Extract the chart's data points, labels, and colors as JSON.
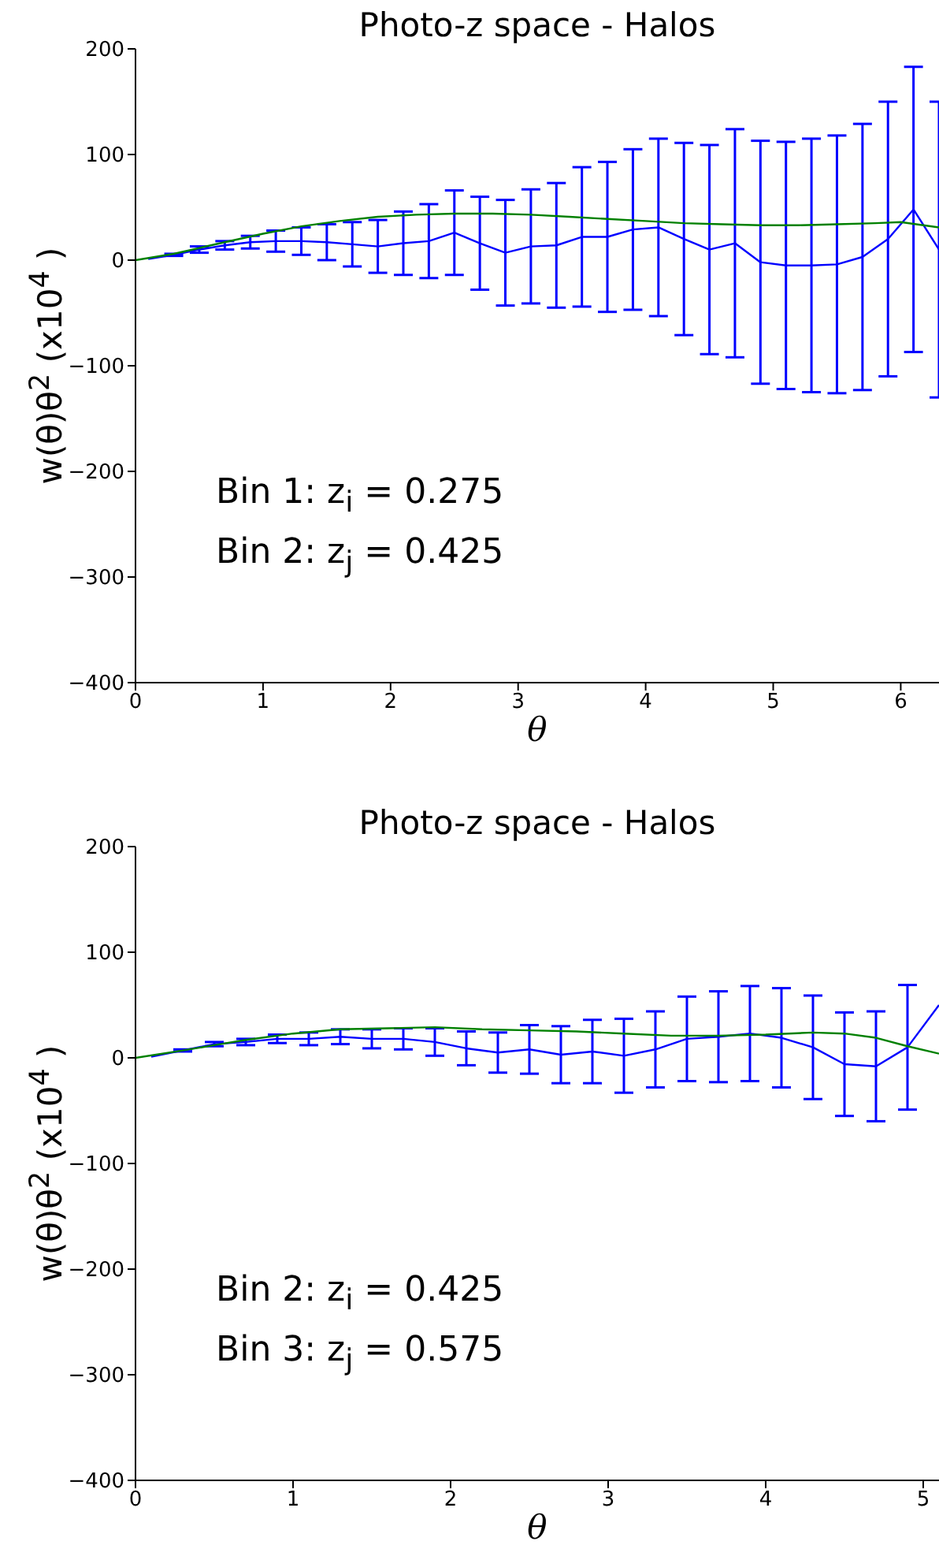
{
  "chart_data": [
    {
      "type": "line",
      "title": "Photo-z space - Halos",
      "xlabel": "θ",
      "ylabel": "w(θ)θ$^{2}$ (x10$^{4}$ )",
      "annotations": [
        "Bin 1: z$_{i}$ = 0.275",
        "Bin 2: z$_{j}$ = 0.425"
      ],
      "xlim": [
        0,
        6.3
      ],
      "xticks": [
        0,
        1,
        2,
        3,
        4,
        5,
        6
      ],
      "ylim": [
        -400,
        200
      ],
      "yticks": [
        {
          "value": -400,
          "label": "−400"
        },
        {
          "value": -300,
          "label": "−300"
        },
        {
          "value": -200,
          "label": "−200"
        },
        {
          "value": -100,
          "label": "−100"
        },
        0,
        100,
        200
      ],
      "series": [
        {
          "color": "#0000ff",
          "x": [
            0.1,
            0.3,
            0.5,
            0.7,
            0.9,
            1.1,
            1.3,
            1.5,
            1.7,
            1.9,
            2.1,
            2.3,
            2.5,
            2.7,
            2.9,
            3.1,
            3.3,
            3.5,
            3.7,
            3.9,
            4.1,
            4.3,
            4.5,
            4.7,
            4.9,
            5.1,
            5.3,
            5.5,
            5.7,
            5.9,
            6.1,
            6.3
          ],
          "values": [
            1,
            5,
            10,
            14,
            17,
            18,
            18,
            17,
            15,
            13,
            16,
            18,
            26,
            16,
            7,
            13,
            14,
            22,
            22,
            29,
            31,
            20,
            10,
            16,
            -2,
            -5,
            -5,
            -4,
            3,
            20,
            48,
            10
          ],
          "errors": [
            null,
            1,
            3,
            4,
            6,
            10,
            13,
            17,
            21,
            25,
            30,
            35,
            40,
            44,
            50,
            54,
            59,
            66,
            71,
            76,
            84,
            91,
            99,
            108,
            115,
            117,
            120,
            122,
            126,
            130,
            135,
            140
          ]
        },
        {
          "color": "#008000",
          "x": [
            0,
            0.3,
            0.7,
            1.0,
            1.3,
            1.6,
            1.9,
            2.2,
            2.5,
            2.8,
            3.1,
            3.4,
            3.7,
            4.0,
            4.3,
            4.6,
            4.9,
            5.2,
            5.5,
            5.8,
            6.0,
            6.3
          ],
          "values": [
            0,
            6,
            17,
            25,
            32,
            37,
            41,
            43,
            44,
            44,
            43,
            41,
            39,
            37,
            35,
            34,
            33,
            33,
            34,
            35,
            36,
            31
          ]
        }
      ]
    },
    {
      "type": "line",
      "title": "Photo-z space - Halos",
      "xlabel": "θ",
      "ylabel": "w(θ)θ$^{2}$ (x10$^{4}$ )",
      "annotations": [
        "Bin 2: z$_{i}$ = 0.425",
        "Bin 3: z$_{j}$ = 0.575"
      ],
      "xlim": [
        0,
        5.1
      ],
      "xticks": [
        0,
        1,
        2,
        3,
        4,
        5
      ],
      "ylim": [
        -400,
        200
      ],
      "yticks": [
        {
          "value": -400,
          "label": "−400"
        },
        {
          "value": -300,
          "label": "−300"
        },
        {
          "value": -200,
          "label": "−200"
        },
        {
          "value": -100,
          "label": "−100"
        },
        0,
        100,
        200
      ],
      "series": [
        {
          "color": "#0000ff",
          "x": [
            0.1,
            0.3,
            0.5,
            0.7,
            0.9,
            1.1,
            1.3,
            1.5,
            1.7,
            1.9,
            2.1,
            2.3,
            2.5,
            2.7,
            2.9,
            3.1,
            3.3,
            3.5,
            3.7,
            3.9,
            4.1,
            4.3,
            4.5,
            4.7,
            4.9,
            5.1
          ],
          "values": [
            1,
            7,
            13,
            15,
            18,
            18,
            20,
            18,
            18,
            15,
            9,
            5,
            8,
            3,
            6,
            2,
            8,
            18,
            20,
            23,
            19,
            10,
            -6,
            -8,
            10,
            50
          ],
          "errors": [
            null,
            1,
            2,
            3,
            4,
            6,
            7,
            9,
            10,
            13,
            16,
            19,
            23,
            27,
            30,
            35,
            36,
            40,
            43,
            45,
            47,
            49,
            49,
            52,
            59,
            null
          ]
        },
        {
          "color": "#008000",
          "x": [
            0,
            0.3,
            0.5,
            0.7,
            1.0,
            1.3,
            1.6,
            1.9,
            2.2,
            2.5,
            2.8,
            3.1,
            3.4,
            3.7,
            4.0,
            4.3,
            4.5,
            4.7,
            4.9,
            5.1
          ],
          "values": [
            0,
            7,
            12,
            17,
            23,
            27,
            28,
            29,
            27,
            26,
            25,
            23,
            21,
            21,
            22,
            24,
            23,
            19,
            11,
            4
          ]
        }
      ]
    }
  ]
}
